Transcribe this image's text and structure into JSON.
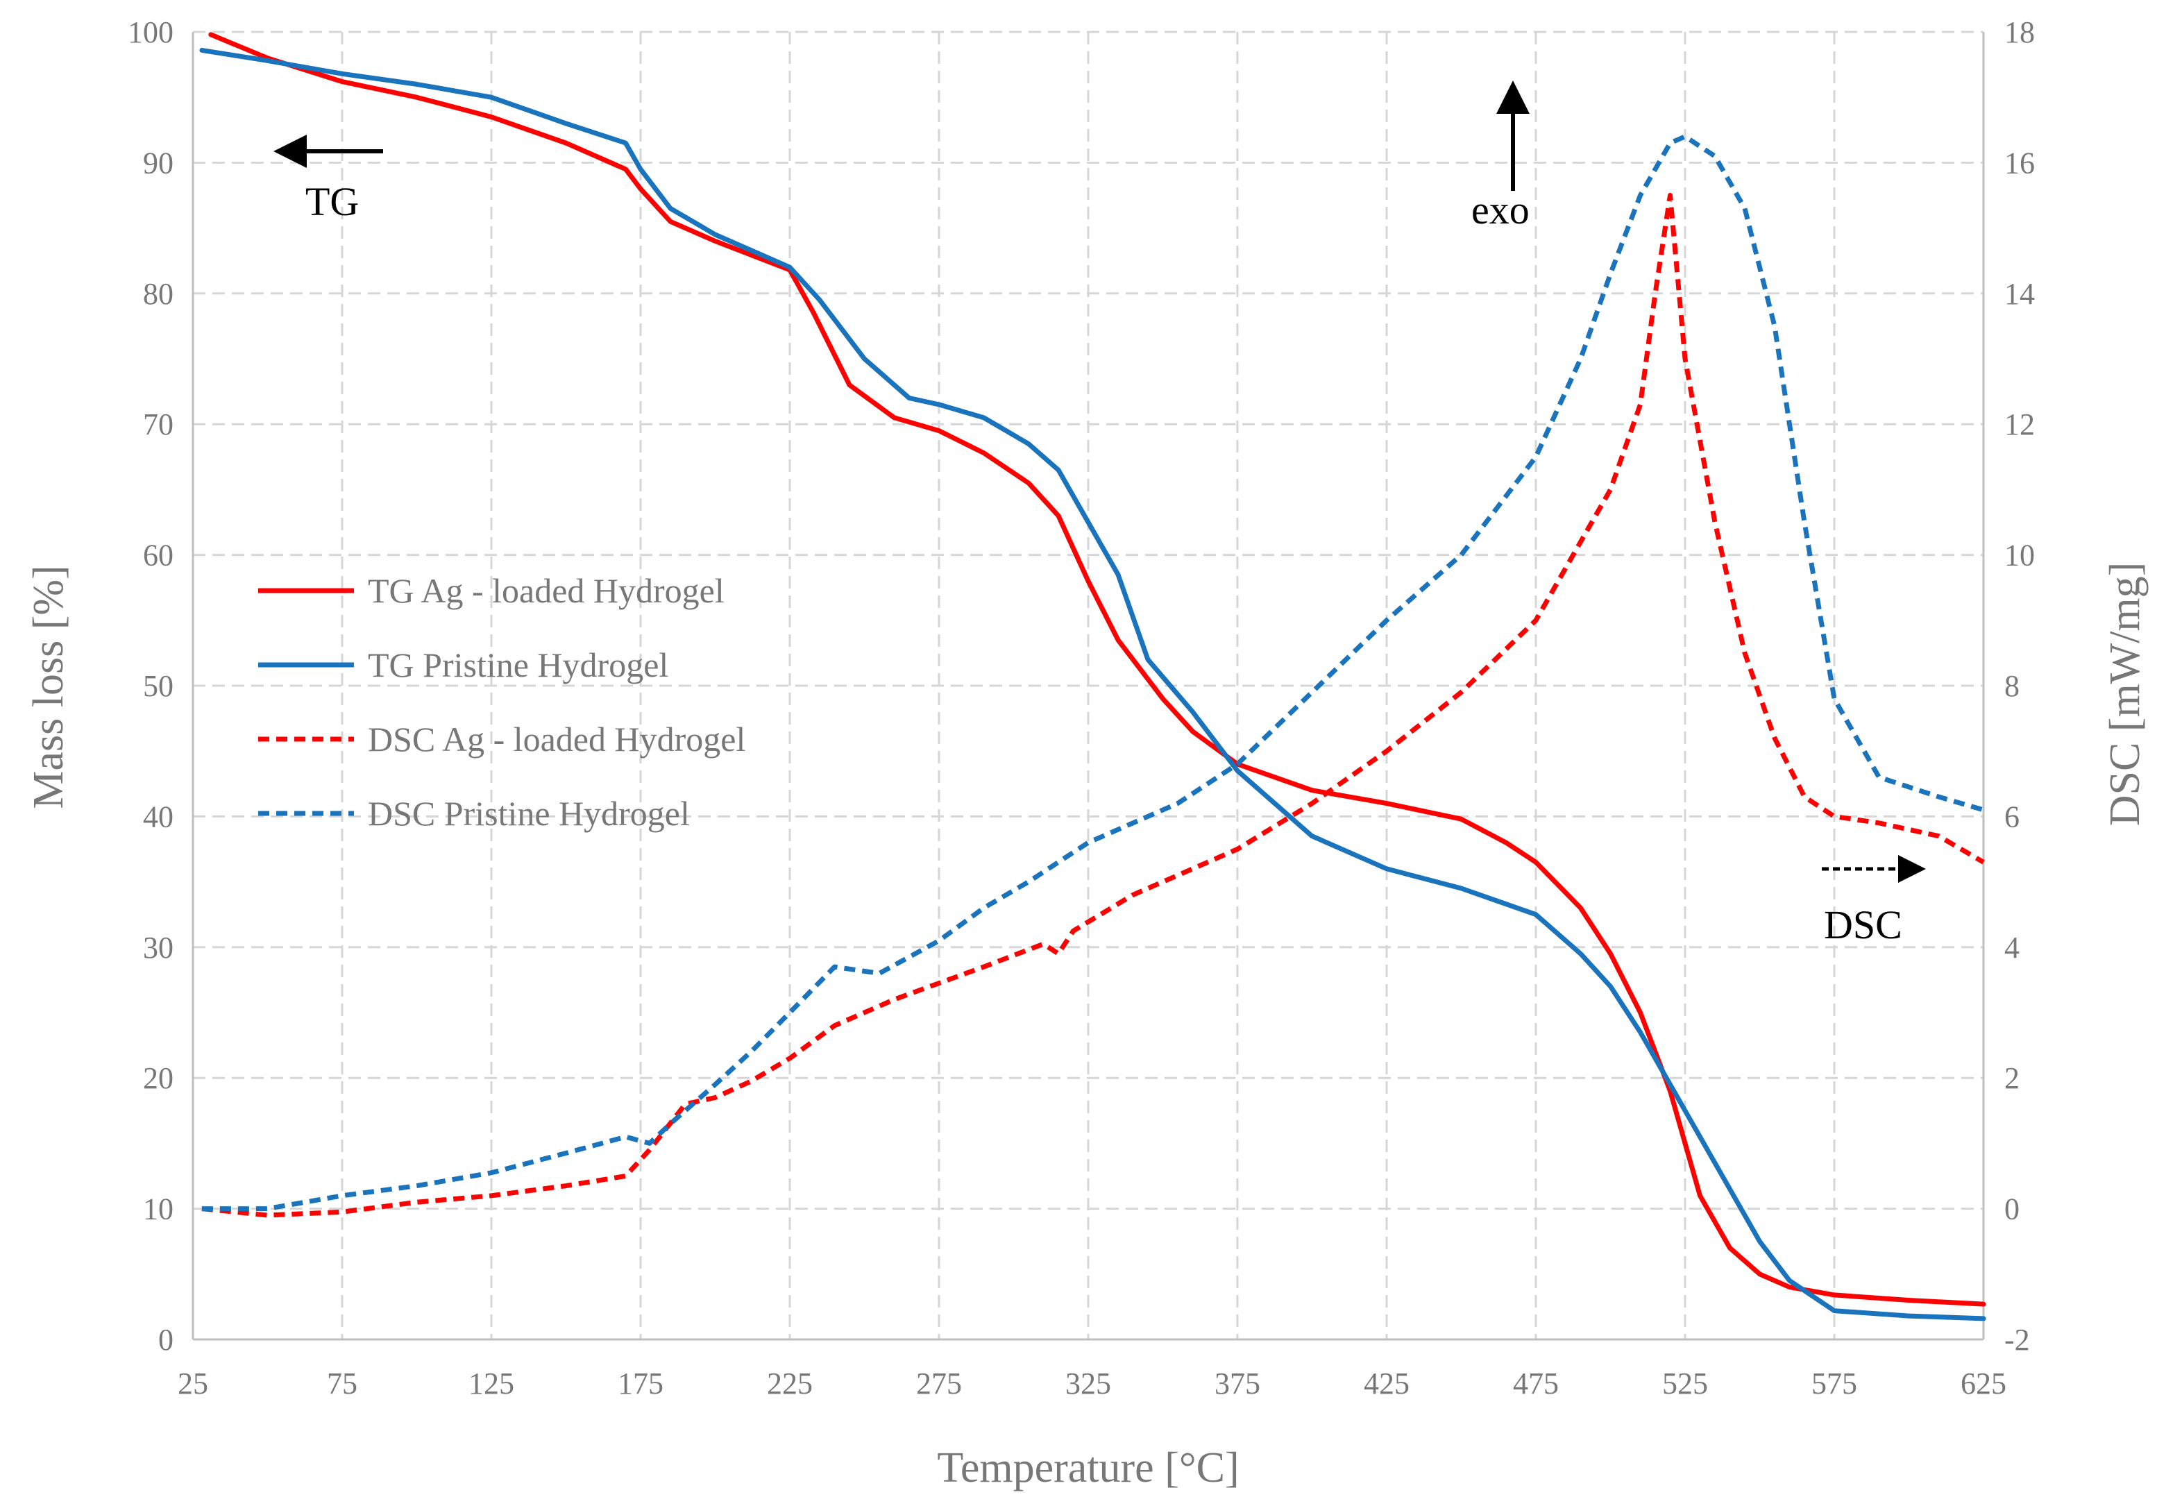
{
  "chart_data": {
    "type": "line",
    "x_axis": {
      "label": "Temperature  [°C]",
      "range": [
        25,
        625
      ],
      "ticks": [
        25,
        75,
        125,
        175,
        225,
        275,
        325,
        375,
        425,
        475,
        525,
        575,
        625
      ]
    },
    "y_left": {
      "label": "Mass loss [%]",
      "range": [
        0,
        100
      ],
      "ticks": [
        0,
        10,
        20,
        30,
        40,
        50,
        60,
        70,
        80,
        90,
        100
      ]
    },
    "y_right": {
      "label": "DSC [mW/mg]",
      "range": [
        -2,
        18
      ],
      "ticks": [
        -2,
        0,
        2,
        4,
        6,
        8,
        10,
        12,
        14,
        16,
        18
      ]
    },
    "grid": true,
    "legend_position": "left-middle",
    "colors": {
      "red": "#ff0000",
      "blue": "#1a74bd"
    },
    "series": [
      {
        "name": "TG Ag - loaded Hydrogel",
        "axis": "left",
        "style": "solid",
        "color": "#ff0000",
        "x": [
          31,
          50,
          75,
          100,
          125,
          150,
          170,
          175,
          185,
          200,
          225,
          233,
          245,
          260,
          275,
          290,
          305,
          315,
          325,
          335,
          350,
          360,
          375,
          400,
          425,
          450,
          465,
          475,
          490,
          500,
          510,
          520,
          525,
          530,
          540,
          550,
          560,
          575,
          600,
          625
        ],
        "values": [
          99.8,
          98.0,
          96.2,
          95.0,
          93.5,
          91.5,
          89.5,
          88.0,
          85.5,
          84.0,
          81.8,
          78.5,
          73.0,
          70.5,
          69.5,
          67.8,
          65.5,
          63.0,
          58.0,
          53.5,
          49.0,
          46.5,
          44.0,
          42.0,
          41.0,
          39.8,
          38.0,
          36.5,
          33.0,
          29.5,
          25.0,
          19.0,
          15.0,
          11.0,
          7.0,
          5.0,
          4.0,
          3.4,
          3.0,
          2.7
        ]
      },
      {
        "name": "TG Pristine Hydrogel",
        "axis": "left",
        "style": "solid",
        "color": "#1a74bd",
        "x": [
          28,
          50,
          75,
          100,
          125,
          150,
          170,
          175,
          185,
          200,
          225,
          235,
          250,
          265,
          275,
          290,
          305,
          315,
          325,
          335,
          345,
          360,
          375,
          400,
          425,
          450,
          475,
          490,
          500,
          510,
          520,
          525,
          530,
          540,
          550,
          560,
          575,
          600,
          625
        ],
        "values": [
          98.6,
          97.8,
          96.8,
          96.0,
          95.0,
          93.0,
          91.5,
          89.5,
          86.5,
          84.5,
          82.0,
          79.5,
          75.0,
          72.0,
          71.5,
          70.5,
          68.5,
          66.5,
          62.5,
          58.5,
          52.0,
          48.0,
          43.5,
          38.5,
          36.0,
          34.5,
          32.5,
          29.5,
          27.0,
          23.5,
          19.5,
          17.5,
          15.5,
          11.5,
          7.5,
          4.5,
          2.2,
          1.8,
          1.6
        ]
      },
      {
        "name": "DSC Ag - loaded Hydrogel",
        "axis": "right",
        "style": "dashed",
        "color": "#ff0000",
        "x": [
          28,
          50,
          75,
          100,
          125,
          150,
          170,
          178,
          190,
          200,
          212,
          225,
          240,
          260,
          275,
          290,
          310,
          315,
          320,
          340,
          360,
          375,
          400,
          425,
          450,
          475,
          500,
          510,
          515,
          520,
          525,
          535,
          545,
          555,
          565,
          575,
          590,
          610,
          625
        ],
        "values": [
          0.0,
          -0.1,
          -0.05,
          0.1,
          0.2,
          0.35,
          0.5,
          0.9,
          1.6,
          1.7,
          1.95,
          2.3,
          2.8,
          3.2,
          3.45,
          3.7,
          4.05,
          3.9,
          4.25,
          4.8,
          5.2,
          5.5,
          6.2,
          7.0,
          7.9,
          9.0,
          11.0,
          12.3,
          14.0,
          15.5,
          13.0,
          10.5,
          8.5,
          7.2,
          6.3,
          6.0,
          5.9,
          5.7,
          5.3
        ]
      },
      {
        "name": "DSC Pristine Hydrogel",
        "axis": "right",
        "style": "dashed",
        "color": "#1a74bd",
        "x": [
          28,
          50,
          75,
          100,
          125,
          150,
          170,
          178,
          185,
          200,
          212,
          225,
          240,
          255,
          275,
          290,
          305,
          315,
          325,
          340,
          355,
          365,
          375,
          400,
          425,
          450,
          475,
          490,
          500,
          510,
          520,
          525,
          535,
          545,
          555,
          565,
          575,
          590,
          610,
          625
        ],
        "values": [
          0.0,
          0.0,
          0.2,
          0.35,
          0.55,
          0.85,
          1.1,
          1.0,
          1.3,
          1.9,
          2.4,
          3.0,
          3.7,
          3.6,
          4.1,
          4.6,
          5.0,
          5.3,
          5.6,
          5.9,
          6.2,
          6.5,
          6.8,
          7.9,
          9.0,
          10.0,
          11.5,
          13.0,
          14.3,
          15.5,
          16.3,
          16.4,
          16.1,
          15.3,
          13.5,
          10.5,
          7.8,
          6.6,
          6.3,
          6.1
        ]
      }
    ],
    "annotations": [
      {
        "text": "TG",
        "arrow": "left"
      },
      {
        "text": "exo",
        "arrow": "up"
      },
      {
        "text": "DSC",
        "arrow": "right",
        "arrow_style": "dashed"
      }
    ]
  }
}
